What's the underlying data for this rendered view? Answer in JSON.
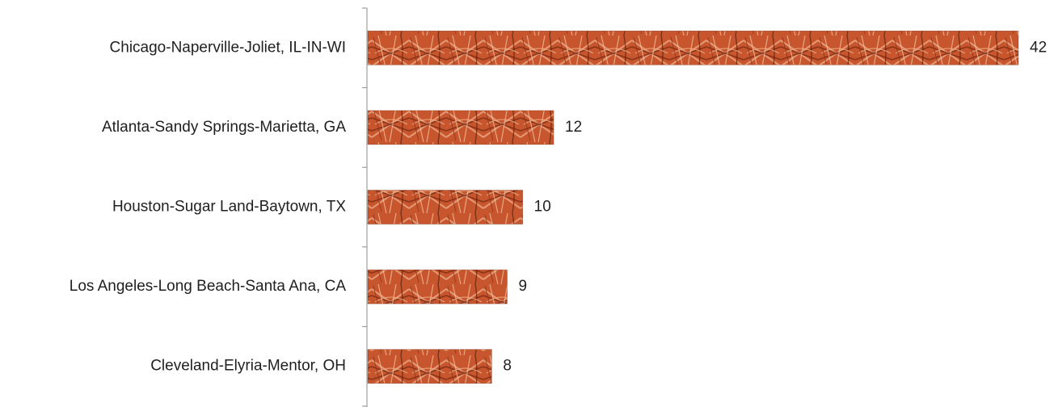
{
  "chart_data": {
    "type": "bar",
    "orientation": "horizontal",
    "categories": [
      "Chicago-Naperville-Joliet, IL-IN-WI",
      "Atlanta-Sandy Springs-Marietta, GA",
      "Houston-Sugar Land-Baytown, TX",
      "Los Angeles-Long Beach-Santa Ana, CA",
      "Cleveland-Elyria-Mentor, OH"
    ],
    "values": [
      42,
      12,
      10,
      9,
      8
    ],
    "data_labels": [
      "42",
      "12",
      "10",
      "9",
      "8"
    ],
    "xlim": [
      0,
      42
    ],
    "grid": false,
    "legend": "none",
    "title": "",
    "xlabel": "",
    "ylabel": "",
    "bar_fill": "textured copper wire",
    "colors": {
      "bar_base": "#c7562e",
      "bar_dark": "#7a2a12",
      "bar_light": "#e8a07a",
      "axis": "#8c8c8c",
      "text": "#1f1f1f"
    }
  }
}
